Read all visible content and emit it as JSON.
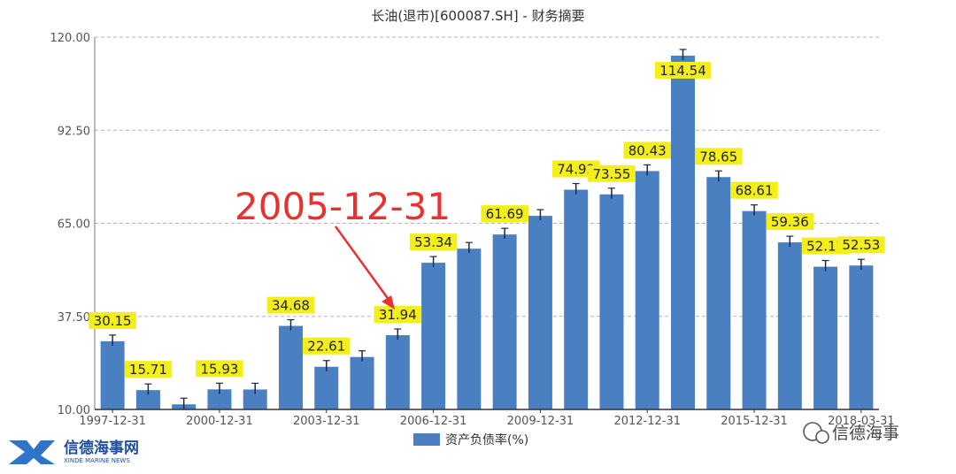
{
  "chart_data": {
    "type": "bar",
    "title": "长油(退市)[600087.SH] - 财务摘要",
    "series": [
      {
        "name": "资产负债率(%)",
        "color": "#4a7fc1",
        "values": [
          30.15,
          15.71,
          11.5,
          15.93,
          15.9,
          34.68,
          22.61,
          25.5,
          31.94,
          53.34,
          57.5,
          61.69,
          67.2,
          74.92,
          73.55,
          80.43,
          114.54,
          78.65,
          68.61,
          59.36,
          52.17,
          52.53
        ]
      }
    ],
    "data_labels": [
      "30.15",
      "15.71",
      "",
      "15.93",
      "",
      "34.68",
      "22.61",
      "",
      "31.94",
      "53.34",
      "",
      "61.69",
      "",
      "74.92",
      "73.55",
      "80.43",
      "114.54",
      "78.65",
      "68.61",
      "59.36",
      "52.17",
      "52.53"
    ],
    "x_tick_labels": [
      "1997-12-31",
      "2000-12-31",
      "2003-12-31",
      "2006-12-31",
      "2009-12-31",
      "2012-12-31",
      "2015-12-31",
      "2018-03-31"
    ],
    "y_ticks": [
      "10.00",
      "37.50",
      "65.00",
      "92.50",
      "120.00"
    ],
    "ylim": [
      10,
      120
    ],
    "grid": true,
    "legend_position": "bottom",
    "annotation": {
      "text": "2005-12-31"
    }
  },
  "branding": {
    "logo_text": "信德海事网",
    "logo_subtext": "XINDE MARINE NEWS",
    "watermark_text": "信德海事"
  }
}
